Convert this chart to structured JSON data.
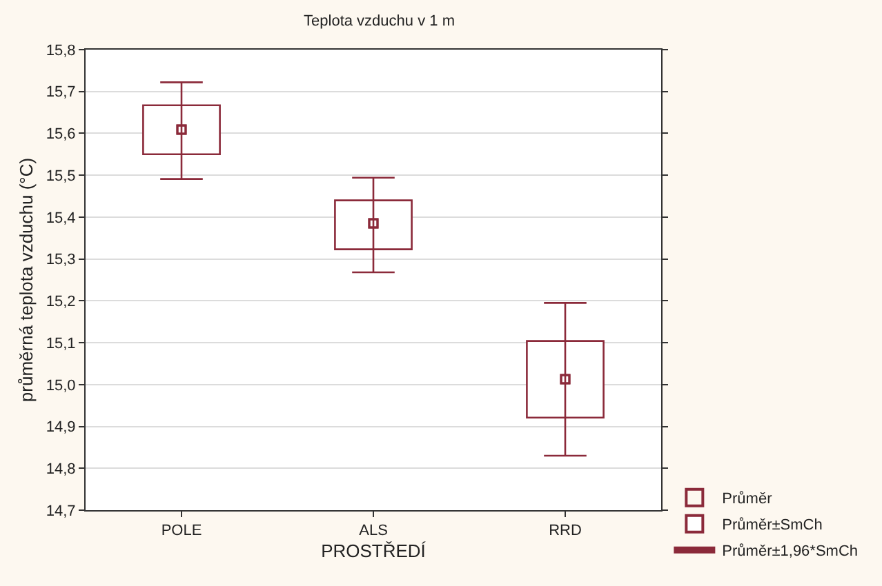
{
  "chart_data": {
    "type": "bar",
    "title": "Teplota vzduchu v 1 m",
    "xlabel": "PROSTŘEDÍ",
    "ylabel": "průměrná teplota vzduchu (°C)",
    "categories": [
      "POLE",
      "ALS",
      "RRD"
    ],
    "series": [
      {
        "type": "scatter",
        "name": "Průměr",
        "color": "#8b2a3a",
        "marker": "square",
        "values": [
          15.609,
          15.385,
          15.013
        ]
      },
      {
        "name": "Průměr±SmCh",
        "color": "#8b2a3a",
        "base": [
          15.55,
          15.323,
          14.921
        ],
        "values": [
          0.117,
          0.117,
          0.183
        ]
      },
      {
        "type": "scatter",
        "name": "Průměr±1,96*SmCh",
        "color": "#8b2a3a",
        "marker": "square",
        "values": [
          15.609,
          15.385,
          15.013
        ],
        "errors": [
          [
            15.491,
            15.722
          ],
          [
            15.268,
            15.494
          ],
          [
            14.83,
            15.195
          ]
        ]
      }
    ],
    "ylim": [
      14.7,
      15.8
    ],
    "yticks": [
      {
        "value": 14.7,
        "label": "14,7"
      },
      {
        "value": 14.8,
        "label": "14,8"
      },
      {
        "value": 14.9,
        "label": "14,9"
      },
      {
        "value": 15.0,
        "label": "15,0"
      },
      {
        "value": 15.1,
        "label": "15,1"
      },
      {
        "value": 15.2,
        "label": "15,2"
      },
      {
        "value": 15.3,
        "label": "15,3"
      },
      {
        "value": 15.4,
        "label": "15,4"
      },
      {
        "value": 15.5,
        "label": "15,5"
      },
      {
        "value": 15.6,
        "label": "15,6"
      },
      {
        "value": 15.7,
        "label": "15,7"
      },
      {
        "value": 15.8,
        "label": "15,8"
      }
    ],
    "grid": "y",
    "legend": "bottom right"
  }
}
